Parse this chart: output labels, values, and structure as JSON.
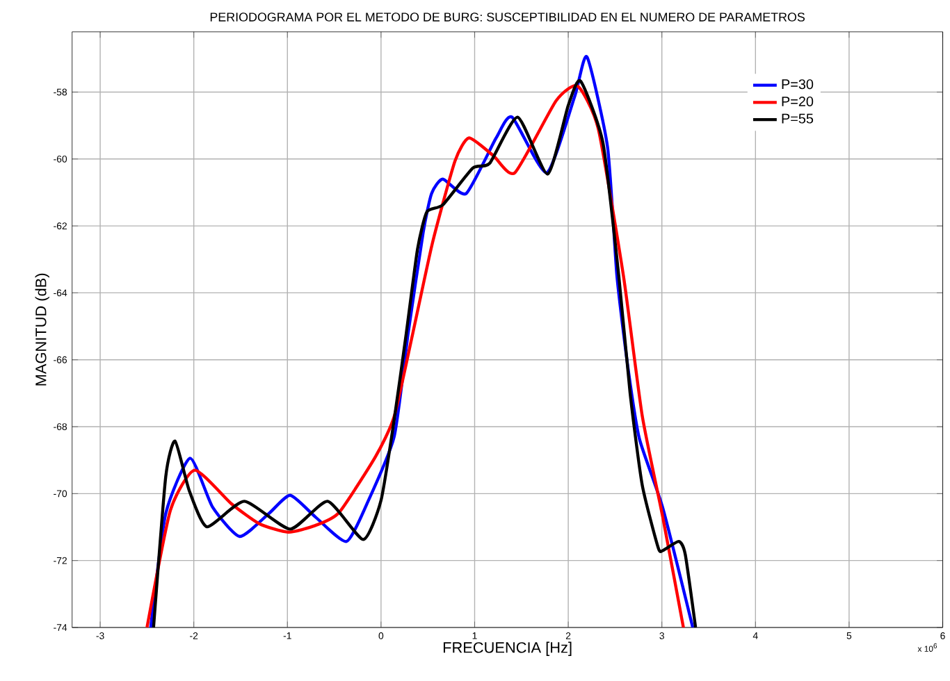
{
  "chart_data": {
    "type": "line",
    "title": "PERIODOGRAMA POR EL METODO DE BURG: SUSCEPTIBILIDAD  EN EL NUMERO DE PARAMETROS",
    "xlabel": "FRECUENCIA [Hz]",
    "ylabel": "MAGNITUD (dB)",
    "annotations": [
      "x 10$^{6}$"
    ],
    "xlim": [
      -3.3,
      6
    ],
    "ylim": [
      -74,
      -56.2
    ],
    "xticks": [
      -3,
      -2,
      -1,
      0,
      1,
      2,
      3,
      4,
      5,
      6
    ],
    "yticks": [
      -74,
      -72,
      -70,
      -68,
      -66,
      -64,
      -62,
      -60,
      -58
    ],
    "grid": true,
    "legend": "top right",
    "line_style": "solid",
    "marker": "none",
    "series": [
      {
        "name": "P=30",
        "color": "#0000ff",
        "x": [
          -2.46,
          -2.3,
          -2.04,
          -1.8,
          -1.51,
          -1.2,
          -0.97,
          -0.7,
          -0.37,
          -0.15,
          0.14,
          0.29,
          0.45,
          0.54,
          0.66,
          0.91,
          1.23,
          1.4,
          1.77,
          2.07,
          2.2,
          2.42,
          2.52,
          2.64,
          2.76,
          3.01,
          3.33
        ],
        "values": [
          -74,
          -70.6,
          -68.94,
          -70.4,
          -71.28,
          -70.6,
          -70.05,
          -70.7,
          -71.43,
          -70.3,
          -68.3,
          -65.2,
          -62.2,
          -61.03,
          -60.6,
          -61.03,
          -59.37,
          -58.75,
          -60.41,
          -58.12,
          -56.95,
          -59.65,
          -63.5,
          -66.28,
          -68.36,
          -70.43,
          -74
        ]
      },
      {
        "name": "P=20",
        "color": "#ff0000",
        "x": [
          -2.5,
          -2.25,
          -1.99,
          -1.6,
          -1.3,
          -0.99,
          -0.7,
          -0.45,
          -0.06,
          0.14,
          0.34,
          0.55,
          0.79,
          0.94,
          1.2,
          1.43,
          1.87,
          2.1,
          2.32,
          2.59,
          2.79,
          3.01,
          3.23
        ],
        "values": [
          -74,
          -70.5,
          -69.3,
          -70.3,
          -70.9,
          -71.15,
          -70.95,
          -70.57,
          -68.9,
          -67.7,
          -65.2,
          -62.5,
          -60.06,
          -59.37,
          -59.9,
          -60.41,
          -58.26,
          -57.82,
          -59.09,
          -63.5,
          -67.67,
          -70.71,
          -74
        ]
      },
      {
        "name": "P=55",
        "color": "#000000",
        "x": [
          -2.43,
          -2.3,
          -2.2,
          -2.05,
          -1.86,
          -1.46,
          -0.97,
          -0.57,
          -0.19,
          0.0,
          0.14,
          0.27,
          0.39,
          0.49,
          0.66,
          0.98,
          1.16,
          1.46,
          1.78,
          2.0,
          2.13,
          2.37,
          2.54,
          2.66,
          2.79,
          2.96,
          3.01,
          3.18,
          3.25,
          3.36
        ],
        "values": [
          -74,
          -69.5,
          -68.43,
          -69.9,
          -70.99,
          -70.23,
          -71.06,
          -70.23,
          -71.37,
          -70.2,
          -67.8,
          -65.2,
          -62.69,
          -61.58,
          -61.37,
          -60.27,
          -60.13,
          -58.75,
          -60.45,
          -58.4,
          -57.67,
          -59.51,
          -63.5,
          -66.98,
          -69.74,
          -71.61,
          -71.7,
          -71.43,
          -71.82,
          -74
        ]
      }
    ]
  }
}
